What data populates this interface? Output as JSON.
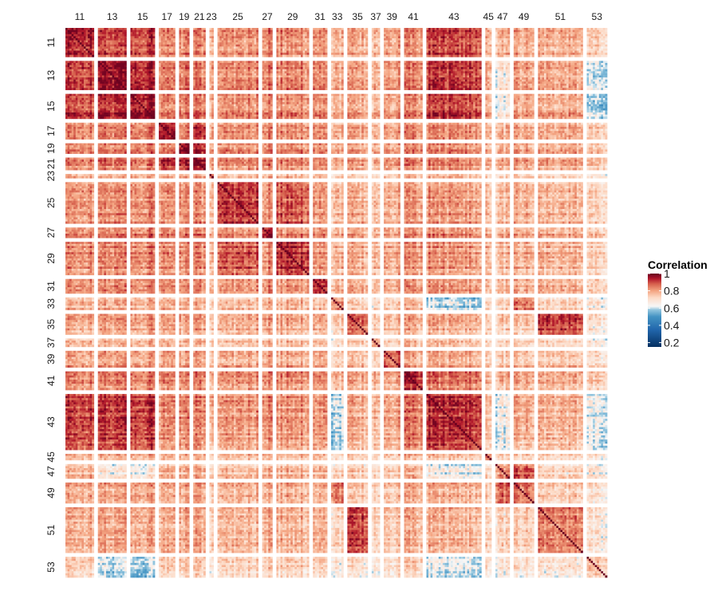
{
  "chart_data": {
    "type": "heatmap",
    "title": "",
    "xlabel": "",
    "ylabel": "",
    "groups": [
      {
        "label": "11",
        "size": 14,
        "mean": 0.86
      },
      {
        "label": "13",
        "size": 14,
        "mean": 0.88
      },
      {
        "label": "15",
        "size": 12,
        "mean": 0.88
      },
      {
        "label": "17",
        "size": 8,
        "mean": 0.85
      },
      {
        "label": "19",
        "size": 5,
        "mean": 0.86
      },
      {
        "label": "21",
        "size": 6,
        "mean": 0.86
      },
      {
        "label": "23",
        "size": 2,
        "mean": 0.8
      },
      {
        "label": "25",
        "size": 20,
        "mean": 0.84
      },
      {
        "label": "27",
        "size": 5,
        "mean": 0.87
      },
      {
        "label": "29",
        "size": 16,
        "mean": 0.84
      },
      {
        "label": "31",
        "size": 7,
        "mean": 0.85
      },
      {
        "label": "33",
        "size": 6,
        "mean": 0.74
      },
      {
        "label": "35",
        "size": 10,
        "mean": 0.78
      },
      {
        "label": "37",
        "size": 4,
        "mean": 0.72
      },
      {
        "label": "39",
        "size": 8,
        "mean": 0.79
      },
      {
        "label": "41",
        "size": 9,
        "mean": 0.84
      },
      {
        "label": "43",
        "size": 27,
        "mean": 0.84
      },
      {
        "label": "45",
        "size": 3,
        "mean": 0.72
      },
      {
        "label": "47",
        "size": 7,
        "mean": 0.72
      },
      {
        "label": "49",
        "size": 10,
        "mean": 0.76
      },
      {
        "label": "51",
        "size": 22,
        "mean": 0.76
      },
      {
        "label": "53",
        "size": 10,
        "mean": 0.66
      }
    ],
    "block_means": [
      [
        "11",
        "13",
        0.9
      ],
      [
        "11",
        "15",
        0.9
      ],
      [
        "13",
        "15",
        0.93
      ],
      [
        "17",
        "21",
        0.9
      ],
      [
        "19",
        "21",
        0.91
      ],
      [
        "25",
        "29",
        0.88
      ],
      [
        "11",
        "43",
        0.9
      ],
      [
        "13",
        "43",
        0.91
      ],
      [
        "15",
        "43",
        0.91
      ],
      [
        "13",
        "53",
        0.6
      ],
      [
        "15",
        "53",
        0.58
      ],
      [
        "43",
        "53",
        0.62
      ],
      [
        "43",
        "33",
        0.6
      ],
      [
        "43",
        "47",
        0.63
      ],
      [
        "13",
        "47",
        0.66
      ],
      [
        "15",
        "47",
        0.65
      ],
      [
        "35",
        "51",
        0.9
      ],
      [
        "47",
        "49",
        0.86
      ],
      [
        "33",
        "49",
        0.84
      ],
      [
        "43",
        "45",
        0.74
      ],
      [
        "41",
        "43",
        0.84
      ]
    ],
    "x_tick_labels": [
      "11",
      "13",
      "15",
      "17",
      "19",
      "21",
      "23",
      "25",
      "27",
      "29",
      "31",
      "33",
      "35",
      "37",
      "39",
      "41",
      "43",
      "45",
      "47",
      "49",
      "51",
      "53"
    ],
    "y_tick_labels": [
      "11",
      "13",
      "15",
      "17",
      "19",
      "21",
      "23",
      "25",
      "27",
      "29",
      "31",
      "33",
      "35",
      "37",
      "39",
      "41",
      "43",
      "45",
      "47",
      "49",
      "51",
      "53"
    ],
    "color_scale": {
      "min": 0.15,
      "max": 1.0,
      "stops": [
        {
          "value": 0.15,
          "color": "#053061"
        },
        {
          "value": 0.35,
          "color": "#2166ac"
        },
        {
          "value": 0.5,
          "color": "#4393c3"
        },
        {
          "value": 0.58,
          "color": "#92c5de"
        },
        {
          "value": 0.62,
          "color": "#f7f7f7"
        },
        {
          "value": 0.72,
          "color": "#fddbc7"
        },
        {
          "value": 0.8,
          "color": "#f4a582"
        },
        {
          "value": 0.88,
          "color": "#d6604d"
        },
        {
          "value": 0.94,
          "color": "#b2182b"
        },
        {
          "value": 1.0,
          "color": "#67001f"
        }
      ]
    },
    "legend": {
      "title": "Correlation",
      "ticks": [
        {
          "value": 1.0,
          "label": "1"
        },
        {
          "value": 0.8,
          "label": "0.8"
        },
        {
          "value": 0.6,
          "label": "0.6"
        },
        {
          "value": 0.4,
          "label": "0.4"
        },
        {
          "value": 0.2,
          "label": "0.2"
        }
      ],
      "placement": "right"
    }
  }
}
